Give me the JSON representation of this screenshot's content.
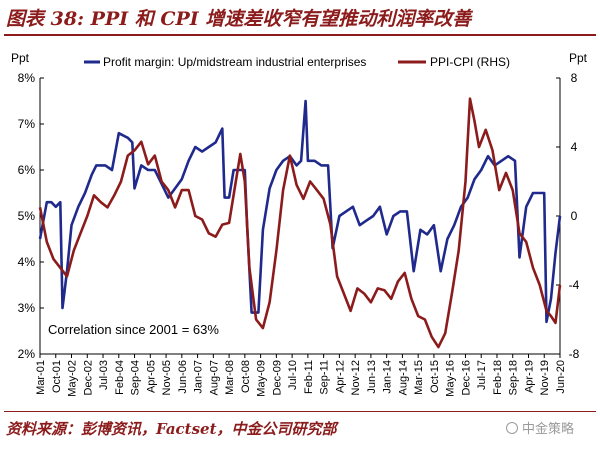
{
  "figure_title": "图表 38: PPI 和 CPI 增速差收窄有望推动利润率改善",
  "source_text": "资料来源：彭博资讯，Factset，中金公司研究部",
  "watermark_text": "中金策略",
  "watermark_icon": "wechat-icon",
  "colors": {
    "title": "#8c1c1c",
    "series_left": "#1f2a8c",
    "series_right": "#8c1c1c",
    "axis": "#000000"
  },
  "chart_data": {
    "type": "line",
    "title": "",
    "left_axis": {
      "unit_label": "Ppt",
      "min": 2,
      "max": 8,
      "ticks": [
        2,
        3,
        4,
        5,
        6,
        7,
        8
      ],
      "tick_labels": [
        "2%",
        "3%",
        "4%",
        "5%",
        "6%",
        "7%",
        "8%"
      ]
    },
    "right_axis": {
      "unit_label": "Ppt",
      "min": -8,
      "max": 8,
      "ticks": [
        -8,
        -4,
        0,
        4,
        8
      ],
      "tick_labels": [
        "-8",
        "-4",
        "0",
        "4",
        "8"
      ]
    },
    "x_axis": {
      "start": "2001-03",
      "end": "2020-06",
      "tick_labels": [
        "Mar-01",
        "Oct-01",
        "May-02",
        "Dec-02",
        "Jul-03",
        "Feb-04",
        "Sep-04",
        "Apr-05",
        "Nov-05",
        "Jun-06",
        "Jan-07",
        "Aug-07",
        "Mar-08",
        "Oct-08",
        "May-09",
        "Dec-09",
        "Jul-10",
        "Feb-11",
        "Sep-11",
        "Apr-12",
        "Nov-12",
        "Jun-13",
        "Jan-14",
        "Aug-14",
        "Mar-15",
        "Oct-15",
        "May-16",
        "Dec-16",
        "Jul-17",
        "Feb-18",
        "Sep-18",
        "Apr-19",
        "Nov-19",
        "Jun-20"
      ]
    },
    "annotation": "Correlation since 2001 = 63%",
    "legend_placement": "top",
    "grid": false,
    "series": [
      {
        "name": "Profit margin: Up/midstream industrial enterprises",
        "axis": "left",
        "points": [
          [
            "2001-03",
            4.5
          ],
          [
            "2001-06",
            5.3
          ],
          [
            "2001-08",
            5.3
          ],
          [
            "2001-10",
            5.2
          ],
          [
            "2001-12",
            5.3
          ],
          [
            "2002-01",
            3.0
          ],
          [
            "2002-03",
            3.8
          ],
          [
            "2002-05",
            4.8
          ],
          [
            "2002-08",
            5.2
          ],
          [
            "2002-11",
            5.5
          ],
          [
            "2003-02",
            5.9
          ],
          [
            "2003-04",
            6.1
          ],
          [
            "2003-08",
            6.1
          ],
          [
            "2003-11",
            6.0
          ],
          [
            "2004-02",
            6.8
          ],
          [
            "2004-06",
            6.7
          ],
          [
            "2004-08",
            6.6
          ],
          [
            "2004-09",
            5.6
          ],
          [
            "2004-12",
            6.1
          ],
          [
            "2005-03",
            6.0
          ],
          [
            "2005-06",
            6.0
          ],
          [
            "2005-09",
            5.7
          ],
          [
            "2005-12",
            5.4
          ],
          [
            "2006-03",
            5.6
          ],
          [
            "2006-06",
            5.8
          ],
          [
            "2006-09",
            6.2
          ],
          [
            "2006-12",
            6.5
          ],
          [
            "2007-03",
            6.4
          ],
          [
            "2007-06",
            6.5
          ],
          [
            "2007-09",
            6.6
          ],
          [
            "2007-12",
            6.9
          ],
          [
            "2008-01",
            5.4
          ],
          [
            "2008-03",
            5.4
          ],
          [
            "2008-05",
            6.0
          ],
          [
            "2008-08",
            6.0
          ],
          [
            "2008-10",
            6.0
          ],
          [
            "2008-11",
            4.8
          ],
          [
            "2009-01",
            2.9
          ],
          [
            "2009-04",
            2.9
          ],
          [
            "2009-06",
            4.7
          ],
          [
            "2009-09",
            5.6
          ],
          [
            "2009-12",
            6.0
          ],
          [
            "2010-03",
            6.2
          ],
          [
            "2010-06",
            6.3
          ],
          [
            "2010-09",
            6.1
          ],
          [
            "2010-11",
            6.2
          ],
          [
            "2011-01",
            7.5
          ],
          [
            "2011-02",
            6.2
          ],
          [
            "2011-05",
            6.2
          ],
          [
            "2011-08",
            6.1
          ],
          [
            "2011-11",
            6.1
          ],
          [
            "2012-01",
            4.3
          ],
          [
            "2012-04",
            5.0
          ],
          [
            "2012-07",
            5.1
          ],
          [
            "2012-10",
            5.2
          ],
          [
            "2013-01",
            4.8
          ],
          [
            "2013-04",
            4.9
          ],
          [
            "2013-07",
            5.0
          ],
          [
            "2013-10",
            5.2
          ],
          [
            "2014-01",
            4.6
          ],
          [
            "2014-04",
            5.0
          ],
          [
            "2014-07",
            5.1
          ],
          [
            "2014-10",
            5.1
          ],
          [
            "2015-01",
            3.8
          ],
          [
            "2015-04",
            4.7
          ],
          [
            "2015-07",
            4.6
          ],
          [
            "2015-10",
            4.8
          ],
          [
            "2016-01",
            3.8
          ],
          [
            "2016-04",
            4.5
          ],
          [
            "2016-07",
            4.8
          ],
          [
            "2016-10",
            5.2
          ],
          [
            "2017-01",
            5.4
          ],
          [
            "2017-04",
            5.8
          ],
          [
            "2017-07",
            6.0
          ],
          [
            "2017-10",
            6.3
          ],
          [
            "2018-01",
            6.1
          ],
          [
            "2018-04",
            6.2
          ],
          [
            "2018-07",
            6.3
          ],
          [
            "2018-10",
            6.2
          ],
          [
            "2018-12",
            4.1
          ],
          [
            "2019-03",
            5.2
          ],
          [
            "2019-06",
            5.5
          ],
          [
            "2019-09",
            5.5
          ],
          [
            "2019-11",
            5.5
          ],
          [
            "2019-12",
            2.7
          ],
          [
            "2020-02",
            3.2
          ],
          [
            "2020-04",
            4.2
          ],
          [
            "2020-06",
            5.0
          ]
        ]
      },
      {
        "name": "PPI-CPI (RHS)",
        "axis": "right",
        "points": [
          [
            "2001-03",
            0.5
          ],
          [
            "2001-06",
            -1.5
          ],
          [
            "2001-09",
            -2.5
          ],
          [
            "2001-12",
            -3.0
          ],
          [
            "2002-03",
            -3.5
          ],
          [
            "2002-06",
            -2.0
          ],
          [
            "2002-09",
            -1.0
          ],
          [
            "2002-12",
            0.0
          ],
          [
            "2003-03",
            1.2
          ],
          [
            "2003-06",
            0.8
          ],
          [
            "2003-09",
            0.5
          ],
          [
            "2003-12",
            1.2
          ],
          [
            "2004-03",
            2.0
          ],
          [
            "2004-06",
            3.5
          ],
          [
            "2004-09",
            3.8
          ],
          [
            "2004-12",
            4.3
          ],
          [
            "2005-03",
            3.0
          ],
          [
            "2005-06",
            3.5
          ],
          [
            "2005-09",
            2.0
          ],
          [
            "2005-12",
            1.5
          ],
          [
            "2006-03",
            0.5
          ],
          [
            "2006-06",
            1.5
          ],
          [
            "2006-09",
            1.5
          ],
          [
            "2006-12,",
            0.0
          ],
          [
            "2007-03",
            -0.2
          ],
          [
            "2007-06",
            -1.0
          ],
          [
            "2007-09",
            -1.2
          ],
          [
            "2007-12",
            -0.5
          ],
          [
            "2008-03",
            -0.4
          ],
          [
            "2008-06",
            2.0
          ],
          [
            "2008-08",
            3.6
          ],
          [
            "2008-10",
            2.0
          ],
          [
            "2008-12",
            -3.0
          ],
          [
            "2009-03",
            -6.0
          ],
          [
            "2009-06",
            -6.5
          ],
          [
            "2009-09",
            -5.0
          ],
          [
            "2009-12",
            -2.0
          ],
          [
            "2010-03",
            1.5
          ],
          [
            "2010-06",
            3.5
          ],
          [
            "2010-09",
            1.8
          ],
          [
            "2010-12",
            1.0
          ],
          [
            "2011-03",
            2.0
          ],
          [
            "2011-06",
            1.5
          ],
          [
            "2011-09",
            1.0
          ],
          [
            "2011-12",
            -0.5
          ],
          [
            "2012-03",
            -3.5
          ],
          [
            "2012-06",
            -4.5
          ],
          [
            "2012-09",
            -5.5
          ],
          [
            "2012-12",
            -4.2
          ],
          [
            "2013-03",
            -4.5
          ],
          [
            "2013-06",
            -5.0
          ],
          [
            "2013-09",
            -4.2
          ],
          [
            "2013-12",
            -4.3
          ],
          [
            "2014-03",
            -4.8
          ],
          [
            "2014-06",
            -3.8
          ],
          [
            "2014-09",
            -3.3
          ],
          [
            "2014-12",
            -4.8
          ],
          [
            "2015-03",
            -5.8
          ],
          [
            "2015-06",
            -6.0
          ],
          [
            "2015-09",
            -7.0
          ],
          [
            "2015-12",
            -7.6
          ],
          [
            "2016-03",
            -6.8
          ],
          [
            "2016-06",
            -4.5
          ],
          [
            "2016-09",
            -2.0
          ],
          [
            "2016-12",
            2.0
          ],
          [
            "2017-02",
            6.8
          ],
          [
            "2017-04",
            5.5
          ],
          [
            "2017-06",
            4.0
          ],
          [
            "2017-09",
            5.0
          ],
          [
            "2017-12",
            3.8
          ],
          [
            "2018-03",
            1.5
          ],
          [
            "2018-06",
            2.5
          ],
          [
            "2018-09",
            1.5
          ],
          [
            "2018-12",
            -1.0
          ],
          [
            "2019-03",
            -1.5
          ],
          [
            "2019-06",
            -3.0
          ],
          [
            "2019-09",
            -4.0
          ],
          [
            "2019-12",
            -5.5
          ],
          [
            "2020-02",
            -5.8
          ],
          [
            "2020-04",
            -6.2
          ],
          [
            "2020-06",
            -4.0
          ]
        ]
      }
    ]
  }
}
